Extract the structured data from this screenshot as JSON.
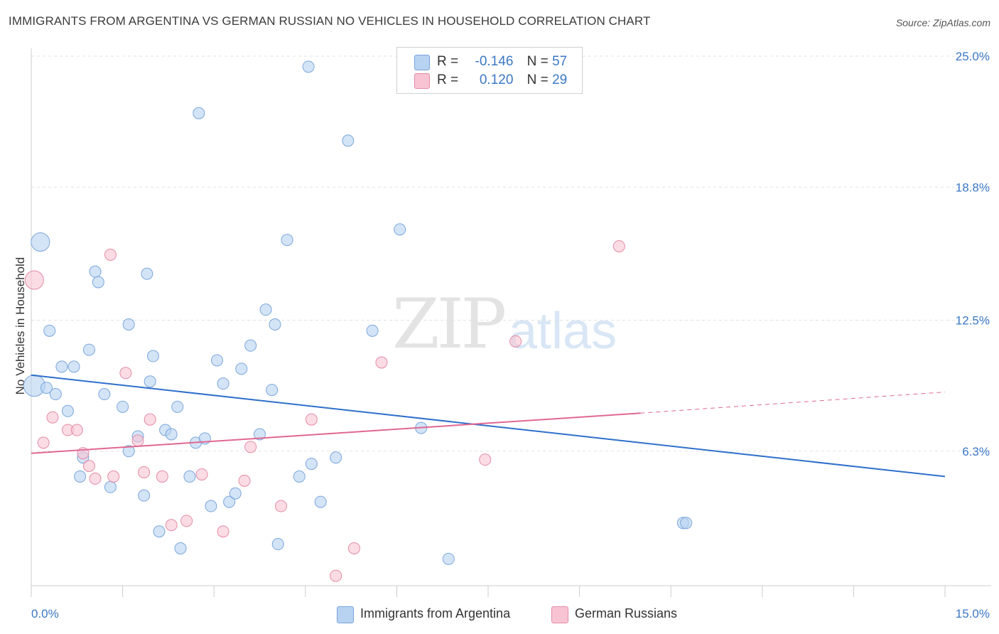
{
  "title": "IMMIGRANTS FROM ARGENTINA VS GERMAN RUSSIAN NO VEHICLES IN HOUSEHOLD CORRELATION CHART",
  "source": "Source: ZipAtlas.com",
  "watermark": {
    "zip": "ZIP",
    "atlas": "atlas"
  },
  "legend": {
    "series1": {
      "r_label": "R =",
      "r_value": "-0.146",
      "n_label": "N =",
      "n_value": "57"
    },
    "series2": {
      "r_label": "R =",
      "r_value": "0.120",
      "n_label": "N =",
      "n_value": "29"
    }
  },
  "colors": {
    "blue_fill": "#b8d2f2",
    "blue_stroke": "#7aa6da",
    "blue_line": "#2f6fcc",
    "pink_fill": "#f8c4d4",
    "pink_stroke": "#e58aa6",
    "pink_line": "#e06891",
    "axis_label": "#3b78c4",
    "grid": "#e2e2e2"
  },
  "chart_data": {
    "type": "scatter",
    "title": "IMMIGRANTS FROM ARGENTINA VS GERMAN RUSSIAN NO VEHICLES IN HOUSEHOLD CORRELATION CHART",
    "xlabel": "",
    "ylabel": "No Vehicles in Household",
    "xlim": [
      0,
      15
    ],
    "ylim": [
      0,
      25
    ],
    "x_tick_labels": [
      "0.0%",
      "15.0%"
    ],
    "y_ticks": [
      6.3,
      12.5,
      18.8,
      25.0
    ],
    "y_tick_labels": [
      "6.3%",
      "12.5%",
      "18.8%",
      "25.0%"
    ],
    "grid": "horizontal dashed",
    "legend_placement": "top-center and bottom",
    "series": [
      {
        "name": "Immigrants from Argentina",
        "color": "blue",
        "r": -0.146,
        "n": 57,
        "trend": {
          "x": [
            0,
            15
          ],
          "y": [
            9.9,
            5.1
          ]
        },
        "points": [
          [
            0.05,
            9.4,
            3
          ],
          [
            0.15,
            16.2,
            2
          ],
          [
            0.25,
            9.3,
            1
          ],
          [
            0.3,
            12.0,
            1
          ],
          [
            0.4,
            9.0,
            1
          ],
          [
            0.5,
            10.3,
            1
          ],
          [
            0.6,
            8.2,
            1
          ],
          [
            0.7,
            10.3,
            1
          ],
          [
            0.8,
            5.1,
            1
          ],
          [
            0.85,
            6.0,
            1
          ],
          [
            0.95,
            11.1,
            1
          ],
          [
            1.05,
            14.8,
            1
          ],
          [
            1.1,
            14.3,
            1
          ],
          [
            1.2,
            9.0,
            1
          ],
          [
            1.3,
            4.6,
            1
          ],
          [
            1.5,
            8.4,
            1
          ],
          [
            1.6,
            6.3,
            1
          ],
          [
            1.6,
            12.3,
            1
          ],
          [
            1.75,
            7.0,
            1
          ],
          [
            1.85,
            4.2,
            1
          ],
          [
            1.9,
            14.7,
            1
          ],
          [
            1.95,
            9.6,
            1
          ],
          [
            2.0,
            10.8,
            1
          ],
          [
            2.1,
            2.5,
            1
          ],
          [
            2.2,
            7.3,
            1
          ],
          [
            2.3,
            7.1,
            1
          ],
          [
            2.4,
            8.4,
            1
          ],
          [
            2.45,
            1.7,
            1
          ],
          [
            2.6,
            5.1,
            1
          ],
          [
            2.7,
            6.7,
            1
          ],
          [
            2.75,
            22.3,
            1
          ],
          [
            2.85,
            6.9,
            1
          ],
          [
            2.95,
            3.7,
            1
          ],
          [
            3.05,
            10.6,
            1
          ],
          [
            3.15,
            9.5,
            1
          ],
          [
            3.25,
            3.9,
            1
          ],
          [
            3.35,
            4.3,
            1
          ],
          [
            3.45,
            10.2,
            1
          ],
          [
            3.6,
            11.3,
            1
          ],
          [
            3.75,
            7.1,
            1
          ],
          [
            3.85,
            13.0,
            1
          ],
          [
            3.95,
            9.2,
            1
          ],
          [
            4.0,
            12.3,
            1
          ],
          [
            4.05,
            1.9,
            1
          ],
          [
            4.2,
            16.3,
            1
          ],
          [
            4.4,
            5.1,
            1
          ],
          [
            4.6,
            5.7,
            1
          ],
          [
            4.55,
            24.5,
            1
          ],
          [
            4.75,
            3.9,
            1
          ],
          [
            5.0,
            6.0,
            1
          ],
          [
            5.2,
            21.0,
            1
          ],
          [
            5.6,
            12.0,
            1
          ],
          [
            6.05,
            16.8,
            1
          ],
          [
            6.4,
            7.4,
            1
          ],
          [
            6.85,
            1.2,
            1
          ],
          [
            10.7,
            2.9,
            1
          ],
          [
            10.75,
            2.9,
            1
          ]
        ]
      },
      {
        "name": "German Russians",
        "color": "pink",
        "r": 0.12,
        "n": 29,
        "trend": {
          "x": [
            0,
            10.0
          ],
          "y": [
            6.2,
            8.1
          ]
        },
        "trend_dashed": {
          "x": [
            10.0,
            15
          ],
          "y": [
            8.1,
            9.1
          ]
        },
        "points": [
          [
            0.05,
            14.4,
            2
          ],
          [
            0.2,
            6.7,
            1
          ],
          [
            0.35,
            7.9,
            1
          ],
          [
            0.6,
            7.3,
            1
          ],
          [
            0.75,
            7.3,
            1
          ],
          [
            0.85,
            6.2,
            1
          ],
          [
            0.95,
            5.6,
            1
          ],
          [
            1.05,
            5.0,
            1
          ],
          [
            1.35,
            5.1,
            1
          ],
          [
            1.3,
            15.6,
            1
          ],
          [
            1.55,
            10.0,
            1
          ],
          [
            1.75,
            6.8,
            1
          ],
          [
            1.85,
            5.3,
            1
          ],
          [
            1.95,
            7.8,
            1
          ],
          [
            2.15,
            5.1,
            1
          ],
          [
            2.3,
            2.8,
            1
          ],
          [
            2.55,
            3.0,
            1
          ],
          [
            2.8,
            5.2,
            1
          ],
          [
            3.15,
            2.5,
            1
          ],
          [
            3.5,
            4.9,
            1
          ],
          [
            3.6,
            6.5,
            1
          ],
          [
            4.1,
            3.7,
            1
          ],
          [
            4.6,
            7.8,
            1
          ],
          [
            5.0,
            0.4,
            1
          ],
          [
            5.3,
            1.7,
            1
          ],
          [
            5.75,
            10.5,
            1
          ],
          [
            7.45,
            5.9,
            1
          ],
          [
            7.95,
            11.5,
            1
          ],
          [
            9.65,
            16.0,
            1
          ]
        ]
      }
    ]
  },
  "bottom_legend": {
    "item1": "Immigrants from Argentina",
    "item2": "German Russians"
  }
}
